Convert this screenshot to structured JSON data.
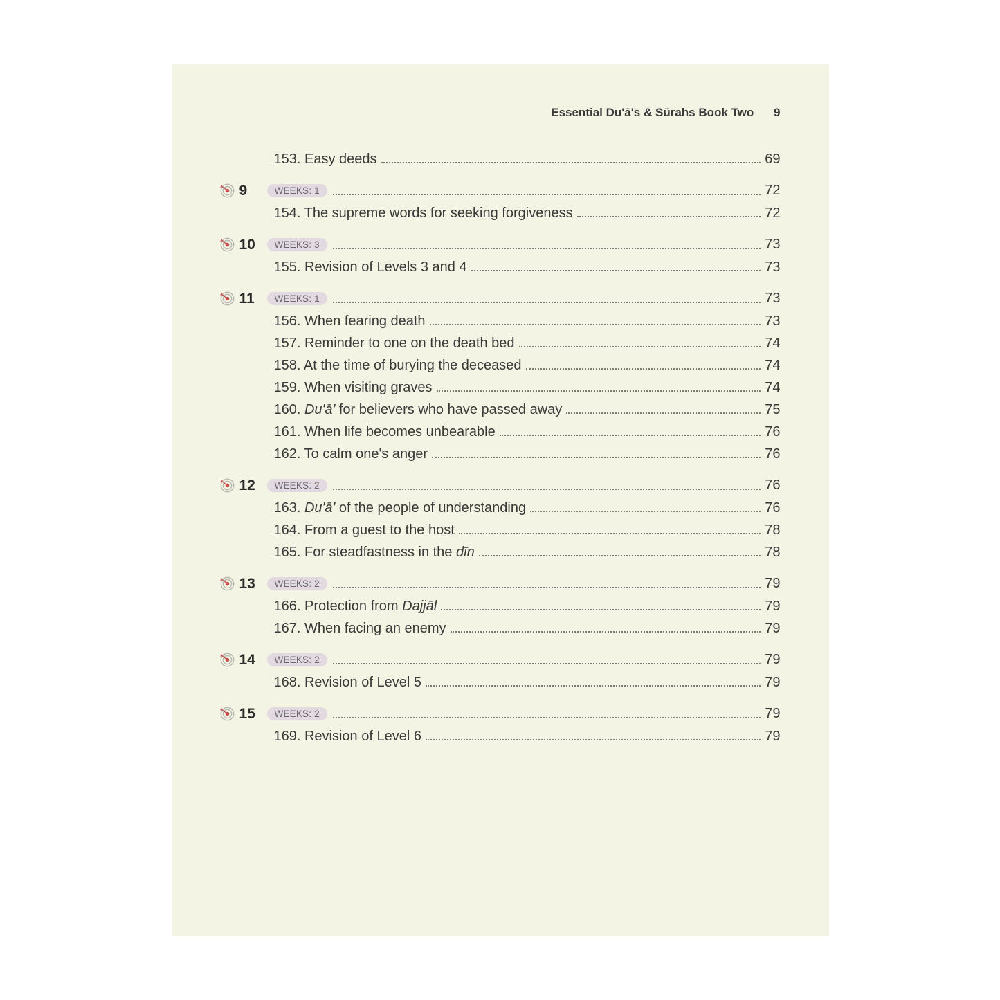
{
  "header": {
    "title": "Essential Du'ā's & Sūrahs Book Two",
    "page_number": "9"
  },
  "colors": {
    "page_bg": "#f3f4e4",
    "text": "#3a3a38",
    "badge_bg": "#e3dae1",
    "badge_text": "#6a6670",
    "icon_outer": "#b8b8b0",
    "icon_inner": "#c94f4f",
    "dot": "#7a7a74"
  },
  "pre_entries": [
    {
      "num": "153.",
      "title": "Easy deeds",
      "page": "69"
    }
  ],
  "sections": [
    {
      "num": "9",
      "weeks": "WEEKS: 1",
      "page": "72",
      "entries": [
        {
          "num": "154.",
          "title": "The supreme words for seeking forgiveness",
          "page": "72"
        }
      ]
    },
    {
      "num": "10",
      "weeks": "WEEKS: 3",
      "page": "73",
      "entries": [
        {
          "num": "155.",
          "title": "Revision of Levels 3 and 4",
          "page": "73"
        }
      ]
    },
    {
      "num": "11",
      "weeks": "WEEKS: 1",
      "page": "73",
      "entries": [
        {
          "num": "156.",
          "title": "When fearing death",
          "page": "73"
        },
        {
          "num": "157.",
          "title": "Reminder to one on the death bed",
          "page": "74"
        },
        {
          "num": "158.",
          "title": "At the time of burying the deceased",
          "page": "74"
        },
        {
          "num": "159.",
          "title": "When visiting graves",
          "page": "74"
        },
        {
          "num": "160.",
          "title": "<em>Du'ā'</em> for believers who have passed away",
          "page": "75"
        },
        {
          "num": "161.",
          "title": "When life becomes unbearable",
          "page": "76"
        },
        {
          "num": "162.",
          "title": "To calm one's anger",
          "page": "76"
        }
      ]
    },
    {
      "num": "12",
      "weeks": "WEEKS: 2",
      "page": "76",
      "entries": [
        {
          "num": "163.",
          "title": "<em>Du'ā'</em> of the people of understanding",
          "page": "76"
        },
        {
          "num": "164.",
          "title": "From a guest to the host",
          "page": "78"
        },
        {
          "num": "165.",
          "title": "For steadfastness in the <em>dīn</em>",
          "page": "78"
        }
      ]
    },
    {
      "num": "13",
      "weeks": "WEEKS: 2",
      "page": "79",
      "entries": [
        {
          "num": "166.",
          "title": "Protection from <em>Dajjāl</em>",
          "page": "79"
        },
        {
          "num": "167.",
          "title": "When facing an enemy",
          "page": "79"
        }
      ]
    },
    {
      "num": "14",
      "weeks": "WEEKS: 2",
      "page": "79",
      "entries": [
        {
          "num": "168.",
          "title": "Revision of Level 5",
          "page": "79"
        }
      ]
    },
    {
      "num": "15",
      "weeks": "WEEKS: 2",
      "page": "79",
      "entries": [
        {
          "num": "169.",
          "title": "Revision of Level 6",
          "page": "79"
        }
      ]
    }
  ]
}
